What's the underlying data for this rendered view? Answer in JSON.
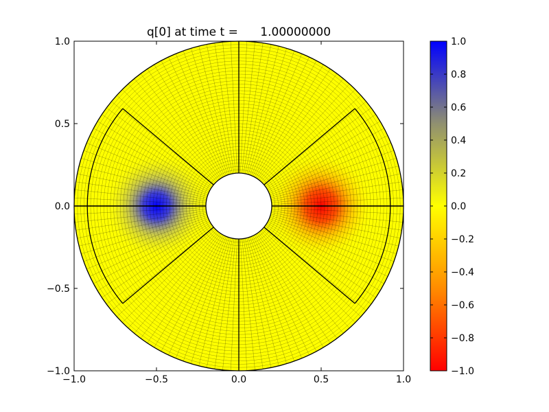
{
  "chart_data": {
    "type": "heatmap",
    "title": "q[0] at time t =      1.00000000",
    "xlim": [
      -1.0,
      1.0
    ],
    "ylim": [
      -1.0,
      1.0
    ],
    "xticks": [
      -1.0,
      -0.5,
      0.0,
      0.5,
      1.0
    ],
    "yticks": [
      -1.0,
      -0.5,
      0.0,
      0.5,
      1.0
    ],
    "xtick_labels": [
      "−1.0",
      "−0.5",
      "0.0",
      "0.5",
      "1.0"
    ],
    "ytick_labels": [
      "−1.0",
      "−0.5",
      "0.0",
      "0.5",
      "1.0"
    ],
    "grid": false,
    "domain": {
      "shape": "annulus",
      "inner_radius": 0.2,
      "outer_radius": 1.0,
      "patch_boundary_radius": 0.92,
      "side_patch_half_angle_deg": 40,
      "rays_deg": [
        0,
        40,
        90,
        140,
        180,
        220,
        270,
        320
      ]
    },
    "field": {
      "description_values": [
        {
          "x": -0.5,
          "y": 0.0,
          "value": 1.0
        },
        {
          "x": 0.5,
          "y": 0.0,
          "value": -1.0
        }
      ],
      "background_value": 0.0
    },
    "colorbar": {
      "vmin": -1.0,
      "vmax": 1.0,
      "ticks": [
        1.0,
        0.8,
        0.6,
        0.4,
        0.2,
        0.0,
        -0.2,
        -0.4,
        -0.6,
        -0.8,
        -1.0
      ],
      "tick_labels": [
        "1.0",
        "0.8",
        "0.6",
        "0.4",
        "0.2",
        "0.0",
        "−0.2",
        "−0.4",
        "−0.6",
        "−0.8",
        "−1.0"
      ],
      "colors": {
        "min": "#ff0000",
        "mid_low": "#ff8c00",
        "zero": "#ffff00",
        "mid_high": "#808080",
        "max": "#0000ff"
      }
    }
  }
}
